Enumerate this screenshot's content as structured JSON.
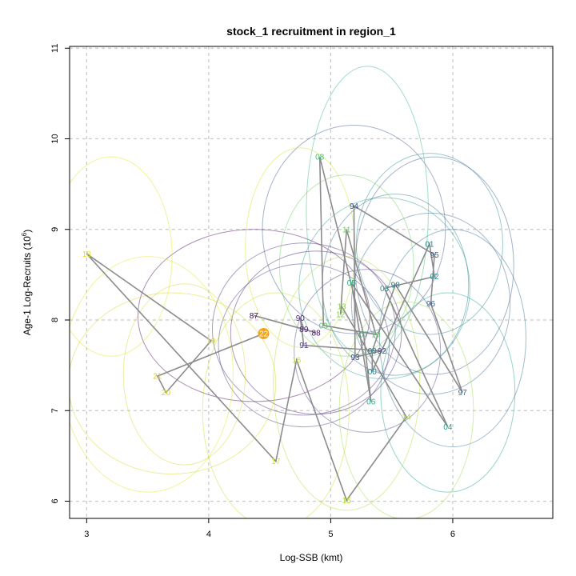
{
  "chart_data": {
    "type": "scatter",
    "title": "stock_1 recruitment in region_1",
    "xlabel": "Log-SSB (kmt)",
    "ylabel_main": "Age-1 Log-Recruits (10",
    "ylabel_sup": "6",
    "ylabel_end": ")",
    "xlim": [
      2.86,
      6.82
    ],
    "ylim": [
      5.81,
      11.02
    ],
    "x_ticks": [
      3,
      4,
      5,
      6
    ],
    "x_tick_labels": [
      "3",
      "4",
      "5",
      "6"
    ],
    "y_ticks": [
      6,
      7,
      8,
      9,
      10,
      11
    ],
    "y_tick_labels": [
      "6",
      "7",
      "8",
      "9",
      "10",
      "11"
    ],
    "grid": true,
    "points": [
      {
        "label": "87",
        "x": 4.37,
        "y": 8.05,
        "color": "#440154"
      },
      {
        "label": "88",
        "x": 4.88,
        "y": 7.86,
        "color": "#450f5e"
      },
      {
        "label": "89",
        "x": 4.78,
        "y": 7.9,
        "color": "#471c68"
      },
      {
        "label": "90",
        "x": 4.75,
        "y": 8.02,
        "color": "#472a75"
      },
      {
        "label": "91",
        "x": 4.78,
        "y": 7.72,
        "color": "#463480"
      },
      {
        "label": "92",
        "x": 5.42,
        "y": 7.66,
        "color": "#433e85"
      },
      {
        "label": "93",
        "x": 5.2,
        "y": 7.59,
        "color": "#3f4889"
      },
      {
        "label": "94",
        "x": 5.19,
        "y": 9.26,
        "color": "#3b528b"
      },
      {
        "label": "95",
        "x": 5.85,
        "y": 8.72,
        "color": "#375b8d"
      },
      {
        "label": "96",
        "x": 5.82,
        "y": 8.18,
        "color": "#33638d"
      },
      {
        "label": "97",
        "x": 6.08,
        "y": 7.2,
        "color": "#2f6c8e"
      },
      {
        "label": "98",
        "x": 5.53,
        "y": 8.39,
        "color": "#2c738e"
      },
      {
        "label": "99",
        "x": 5.34,
        "y": 7.66,
        "color": "#297b8e"
      },
      {
        "label": "00",
        "x": 5.34,
        "y": 7.43,
        "color": "#26828e"
      },
      {
        "label": "01",
        "x": 5.81,
        "y": 8.84,
        "color": "#238a8d"
      },
      {
        "label": "02",
        "x": 5.85,
        "y": 8.48,
        "color": "#21918c"
      },
      {
        "label": "03",
        "x": 5.44,
        "y": 8.35,
        "color": "#1f988b"
      },
      {
        "label": "04",
        "x": 5.96,
        "y": 6.82,
        "color": "#1fa088"
      },
      {
        "label": "05",
        "x": 5.17,
        "y": 8.41,
        "color": "#22a884"
      },
      {
        "label": "06",
        "x": 5.33,
        "y": 7.1,
        "color": "#28ae80"
      },
      {
        "label": "07",
        "x": 5.27,
        "y": 7.84,
        "color": "#31b57b"
      },
      {
        "label": "08",
        "x": 4.91,
        "y": 9.8,
        "color": "#3dbc74"
      },
      {
        "label": "09",
        "x": 4.94,
        "y": 7.94,
        "color": "#4ac16d"
      },
      {
        "label": "10",
        "x": 5.37,
        "y": 7.84,
        "color": "#58c765"
      },
      {
        "label": "11",
        "x": 5.13,
        "y": 9.0,
        "color": "#68cd5b"
      },
      {
        "label": "12",
        "x": 5.08,
        "y": 8.06,
        "color": "#7ad151"
      },
      {
        "label": "13",
        "x": 5.09,
        "y": 8.15,
        "color": "#8bd646"
      },
      {
        "label": "14",
        "x": 5.62,
        "y": 6.93,
        "color": "#9dd93b"
      },
      {
        "label": "15",
        "x": 5.13,
        "y": 6.01,
        "color": "#addc30"
      },
      {
        "label": "16",
        "x": 4.72,
        "y": 7.56,
        "color": "#bfdf25"
      },
      {
        "label": "17",
        "x": 4.55,
        "y": 6.44,
        "color": "#d1e21b"
      },
      {
        "label": "18",
        "x": 3.0,
        "y": 8.73,
        "color": "#e2e418"
      },
      {
        "label": "19",
        "x": 4.02,
        "y": 7.77,
        "color": "#d8d82a"
      },
      {
        "label": "20",
        "x": 3.65,
        "y": 7.2,
        "color": "#d6d21f"
      },
      {
        "label": "21",
        "x": 3.58,
        "y": 7.38,
        "color": "#d8cf1c"
      },
      {
        "label": "22",
        "x": 4.45,
        "y": 7.85,
        "color": "#ffffff"
      }
    ],
    "highlight": {
      "label": "22",
      "x": 4.45,
      "y": 7.85,
      "color": "#f5a316"
    },
    "ellipses": [
      {
        "x": 4.37,
        "y": 8.05,
        "rx": 0.95,
        "ry": 0.95,
        "color": "#440154"
      },
      {
        "x": 4.88,
        "y": 7.86,
        "rx": 0.7,
        "ry": 0.9,
        "color": "#471c68"
      },
      {
        "x": 4.78,
        "y": 7.9,
        "rx": 0.75,
        "ry": 0.95,
        "color": "#472a75"
      },
      {
        "x": 4.78,
        "y": 7.72,
        "rx": 0.7,
        "ry": 0.9,
        "color": "#463480"
      },
      {
        "x": 5.3,
        "y": 7.66,
        "rx": 0.6,
        "ry": 0.9,
        "color": "#433e85"
      },
      {
        "x": 5.19,
        "y": 9.0,
        "rx": 0.75,
        "ry": 1.15,
        "color": "#3b528b"
      },
      {
        "x": 5.85,
        "y": 8.6,
        "rx": 0.65,
        "ry": 1.2,
        "color": "#375b8d"
      },
      {
        "x": 5.82,
        "y": 8.18,
        "rx": 0.65,
        "ry": 1.0,
        "color": "#33638d"
      },
      {
        "x": 6.0,
        "y": 7.8,
        "rx": 0.6,
        "ry": 1.2,
        "color": "#2f6c8e"
      },
      {
        "x": 5.53,
        "y": 8.39,
        "rx": 0.6,
        "ry": 1.0,
        "color": "#2c738e"
      },
      {
        "x": 5.81,
        "y": 8.84,
        "rx": 0.6,
        "ry": 1.0,
        "color": "#238a8d"
      },
      {
        "x": 5.44,
        "y": 8.35,
        "rx": 0.7,
        "ry": 1.0,
        "color": "#1f988b"
      },
      {
        "x": 5.96,
        "y": 7.2,
        "rx": 0.55,
        "ry": 1.1,
        "color": "#1fa088"
      },
      {
        "x": 5.3,
        "y": 9.2,
        "rx": 0.5,
        "ry": 1.6,
        "color": "#31b57b"
      },
      {
        "x": 5.13,
        "y": 8.6,
        "rx": 0.55,
        "ry": 1.0,
        "color": "#68cd5b"
      },
      {
        "x": 5.62,
        "y": 7.0,
        "rx": 0.55,
        "ry": 1.2,
        "color": "#9dd93b"
      },
      {
        "x": 5.13,
        "y": 7.3,
        "rx": 0.6,
        "ry": 1.4,
        "color": "#addc30"
      },
      {
        "x": 4.55,
        "y": 7.0,
        "rx": 0.6,
        "ry": 1.3,
        "color": "#bfdf25"
      },
      {
        "x": 4.75,
        "y": 8.8,
        "rx": 0.45,
        "ry": 1.1,
        "color": "#d1e21b"
      },
      {
        "x": 3.2,
        "y": 8.7,
        "rx": 0.5,
        "ry": 1.1,
        "color": "#e2e418"
      },
      {
        "x": 3.8,
        "y": 7.4,
        "rx": 0.5,
        "ry": 1.0,
        "color": "#d8d82a"
      },
      {
        "x": 3.7,
        "y": 7.3,
        "rx": 0.85,
        "ry": 1.0,
        "color": "#d6d21f"
      },
      {
        "x": 3.5,
        "y": 7.4,
        "rx": 0.7,
        "ry": 1.3,
        "color": "#e2e418"
      }
    ]
  }
}
